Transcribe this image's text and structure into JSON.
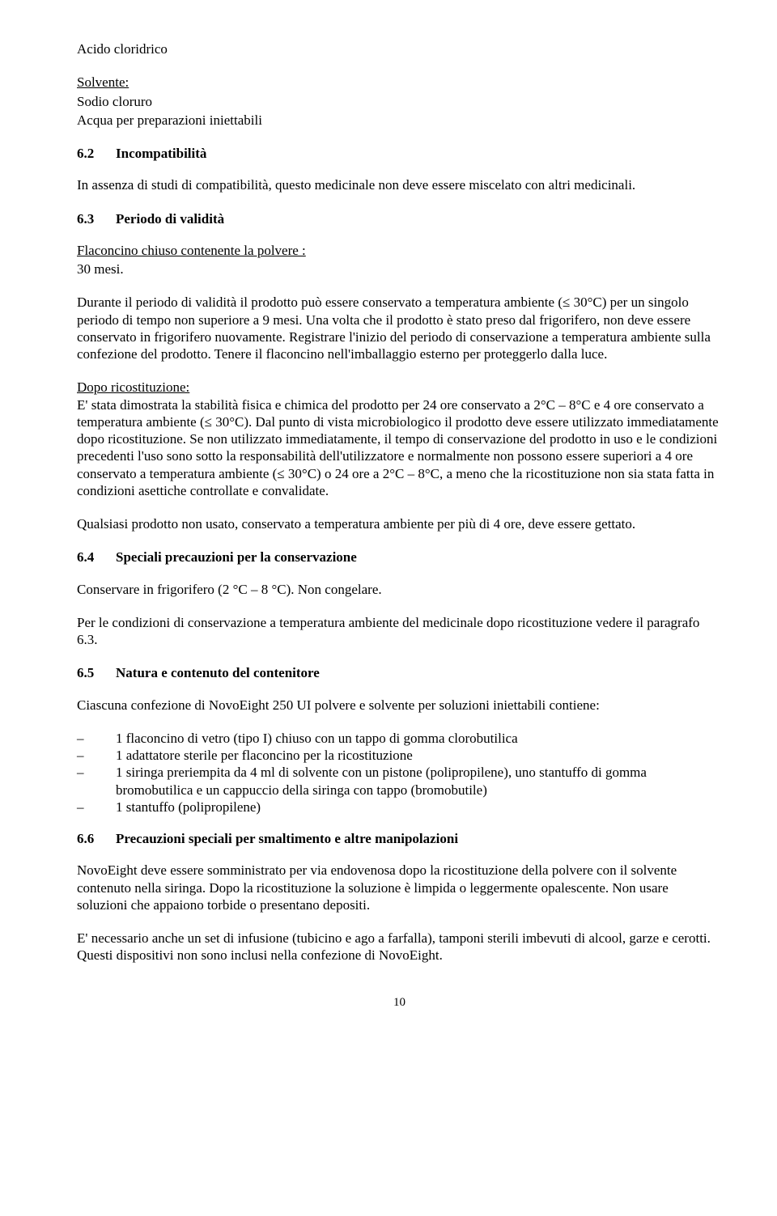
{
  "l1": "Acido cloridrico",
  "l2": "Solvente:",
  "l3": "Sodio cloruro",
  "l4": "Acqua per preparazioni iniettabili",
  "h62_num": "6.2",
  "h62_txt": "Incompatibilità",
  "p62": "In assenza di studi di compatibilità, questo medicinale non deve essere miscelato con altri medicinali.",
  "h63_num": "6.3",
  "h63_txt": "Periodo di validità",
  "p63a_u": "Flaconcino chiuso contenente la polvere :",
  "p63a_l2": "30 mesi.",
  "p63b": "Durante il periodo di validità il prodotto può essere conservato a temperatura ambiente (≤ 30°C)  per un singolo periodo di tempo non superiore a 9 mesi. Una volta che il prodotto è stato preso dal frigorifero, non deve essere conservato in frigorifero nuovamente. Registrare l'inizio del periodo di conservazione a temperatura ambiente sulla confezione del prodotto. Tenere il flaconcino nell'imballaggio esterno per proteggerlo dalla luce.",
  "p63c_u": "Dopo ricostituzione:",
  "p63c": "E' stata dimostrata la stabilità fisica e chimica del prodotto per 24 ore conservato a 2°C – 8°C e 4 ore conservato a temperatura ambiente (≤ 30°C). Dal punto di vista microbiologico il prodotto deve essere utilizzato immediatamente dopo ricostituzione. Se non utilizzato immediatamente, il tempo di conservazione del prodotto in uso e le condizioni precedenti l'uso sono sotto la responsabilità dell'utilizzatore e normalmente non possono essere superiori a 4 ore conservato a temperatura ambiente (≤ 30°C) o 24 ore a 2°C – 8°C, a meno che la ricostituzione non sia stata fatta in condizioni asettiche controllate e convalidate.",
  "p63d": "Qualsiasi prodotto non usato, conservato a temperatura ambiente per più di 4 ore, deve essere gettato.",
  "h64_num": "6.4",
  "h64_txt": "Speciali precauzioni per la conservazione",
  "p64a": "Conservare in frigorifero (2 °C – 8 °C). Non congelare.",
  "p64b": "Per le condizioni di conservazione a temperatura ambiente del medicinale dopo ricostituzione vedere il paragrafo 6.3.",
  "h65_num": "6.5",
  "h65_txt": "Natura e contenuto del contenitore",
  "p65a": "Ciascuna confezione di NovoEight 250 UI polvere e solvente per soluzioni iniettabili contiene:",
  "li1": "1 flaconcino di vetro (tipo I) chiuso con un tappo di gomma clorobutilica",
  "li2": "1 adattatore sterile per flaconcino per la ricostituzione",
  "li3": "1 siringa preriempita da 4 ml di solvente con un pistone (polipropilene), uno stantuffo di gomma bromobutilica e un cappuccio della siringa con tappo (bromobutile)",
  "li4": "1 stantuffo (polipropilene)",
  "h66_num": "6.6",
  "h66_txt": "Precauzioni speciali per smaltimento e altre manipolazioni",
  "p66a": "NovoEight deve essere somministrato per via endovenosa dopo la ricostituzione della polvere con il solvente contenuto nella siringa. Dopo la ricostituzione la soluzione è limpida o leggermente opalescente. Non usare soluzioni che appaiono torbide o presentano depositi.",
  "p66b": "E' necessario anche un set di infusione (tubicino e ago a farfalla), tamponi sterili imbevuti di alcool, garze e cerotti. Questi dispositivi non sono inclusi nella confezione di NovoEight.",
  "page_num": "10"
}
